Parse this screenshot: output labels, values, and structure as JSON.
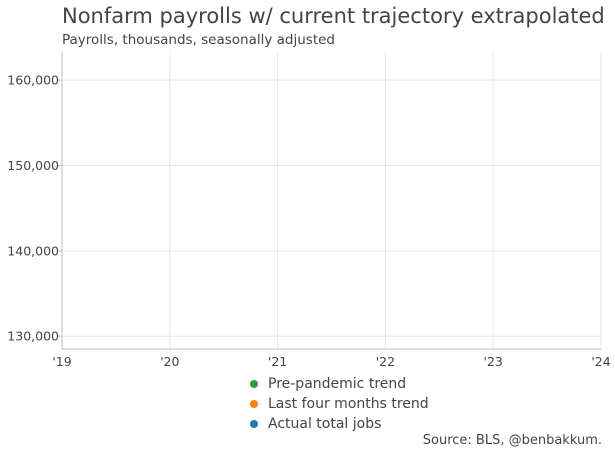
{
  "chart_data": {
    "type": "line",
    "title": "Nonfarm payrolls w/ current trajectory extrapolated",
    "subtitle": "Payrolls, thousands, seasonally adjusted",
    "xlabel": "",
    "ylabel": "",
    "x_ticks": [
      "'19",
      "'20",
      "'21",
      "'22",
      "'23",
      "'24"
    ],
    "y_ticks": [
      130000,
      140000,
      150000,
      160000
    ],
    "y_tick_labels": [
      "130,000",
      "140,000",
      "150,000",
      "160,000"
    ],
    "xlim": [
      2019,
      2024
    ],
    "ylim": [
      128500,
      163300
    ],
    "grid": true,
    "legend_position": "bottom",
    "series": [
      {
        "name": "Pre-pandemic trend",
        "color": "#2ca02c",
        "values": []
      },
      {
        "name": "Last four months trend",
        "color": "#ff7f0e",
        "values": []
      },
      {
        "name": "Actual total jobs",
        "color": "#1f77b4",
        "values": []
      }
    ],
    "source": "Source: BLS, @benbakkum."
  }
}
